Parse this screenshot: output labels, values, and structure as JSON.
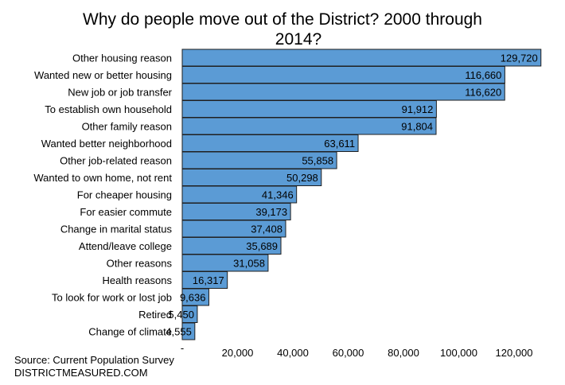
{
  "chart_data": {
    "type": "bar",
    "orientation": "horizontal",
    "title_line1": "Why do people move out of the District? 2000 through",
    "title_line2": "2014?",
    "categories": [
      "Other housing reason",
      "Wanted new or better housing",
      "New job or job transfer",
      "To establish own household",
      "Other family reason",
      "Wanted better neighborhood",
      "Other job-related reason",
      "Wanted to own home, not rent",
      "For cheaper housing",
      "For easier commute",
      "Change in marital status",
      "Attend/leave college",
      "Other reasons",
      "Health reasons",
      "To look for work or lost job",
      "Retired",
      "Change of climate"
    ],
    "values": [
      129720,
      116660,
      116620,
      91912,
      91804,
      63611,
      55858,
      50298,
      41346,
      39173,
      37408,
      35689,
      31058,
      16317,
      9636,
      5450,
      4555
    ],
    "value_labels": [
      "129,720",
      "116,660",
      "116,620",
      "91,912",
      "91,804",
      "63,611",
      "55,858",
      "50,298",
      "41,346",
      "39,173",
      "37,408",
      "35,689",
      "31,058",
      "16,317",
      "9,636",
      "5,450",
      "4,555"
    ],
    "x_ticks": [
      0,
      20000,
      40000,
      60000,
      80000,
      100000,
      120000
    ],
    "x_tick_labels": [
      "-",
      "20,000",
      "40,000",
      "60,000",
      "80,000",
      "100,000",
      "120,000"
    ],
    "xlim": [
      0,
      130000
    ],
    "bar_color": "#5b9bd5",
    "bar_border_color": "#1f1f1f",
    "grid": false,
    "legend": "none"
  },
  "source": "Source: Current Population Survey",
  "site": "DISTRICTMEASURED.COM"
}
